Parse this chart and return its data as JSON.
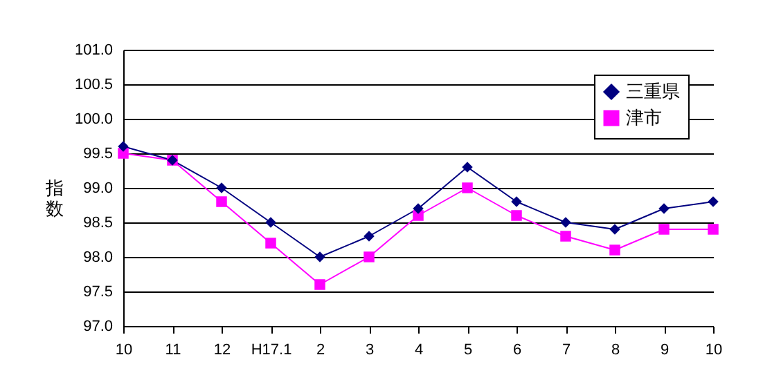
{
  "chart_data": {
    "type": "line",
    "ylabel": "指数",
    "categories": [
      "10",
      "11",
      "12",
      "H17.1",
      "2",
      "3",
      "4",
      "5",
      "6",
      "7",
      "8",
      "9",
      "10"
    ],
    "series": [
      {
        "name": "三重県",
        "color": "#000080",
        "marker": "diamond",
        "values": [
          99.6,
          99.4,
          99.0,
          98.5,
          98.0,
          98.3,
          98.7,
          99.3,
          98.8,
          98.5,
          98.4,
          98.7,
          98.8
        ]
      },
      {
        "name": "津市",
        "color": "#ff00ff",
        "marker": "square",
        "values": [
          99.5,
          99.4,
          98.8,
          98.2,
          97.6,
          98.0,
          98.6,
          99.0,
          98.6,
          98.3,
          98.1,
          98.4,
          98.4
        ]
      }
    ],
    "ylim": [
      97.0,
      101.0
    ],
    "yticks": [
      {
        "value": 97.0,
        "label": "97.0"
      },
      {
        "value": 97.5,
        "label": "97.5"
      },
      {
        "value": 98.0,
        "label": "98.0"
      },
      {
        "value": 98.5,
        "label": "98.5"
      },
      {
        "value": 99.0,
        "label": "99.0"
      },
      {
        "value": 99.5,
        "label": "99.5"
      },
      {
        "value": 100.0,
        "label": "100.0"
      },
      {
        "value": 100.5,
        "label": "100.5"
      },
      {
        "value": 101.0,
        "label": "101.0"
      }
    ],
    "grid": "y",
    "legend": "top right"
  }
}
